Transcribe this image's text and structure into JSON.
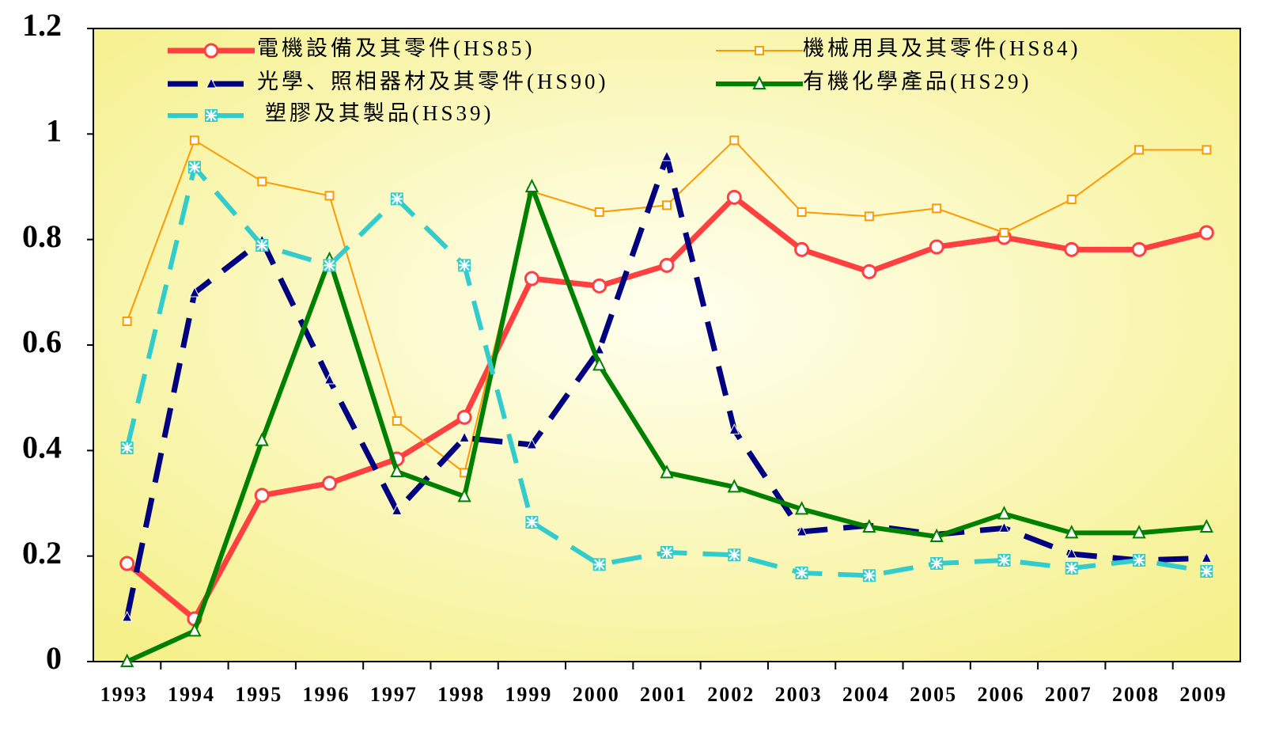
{
  "chart_data": {
    "type": "line",
    "categories": [
      "1993",
      "1994",
      "1995",
      "1996",
      "1997",
      "1998",
      "1999",
      "2000",
      "2001",
      "2002",
      "2003",
      "2004",
      "2005",
      "2006",
      "2007",
      "2008",
      "2009"
    ],
    "ylim": [
      0,
      1.2
    ],
    "yticks": [
      0,
      0.2,
      0.4,
      0.6,
      0.8,
      1,
      1.2
    ],
    "series": [
      {
        "name": "電機設備及其零件(HS85)",
        "color": "#ff4040",
        "marker": "circle",
        "dash": false,
        "width": 7,
        "values": [
          0.186,
          0.081,
          0.315,
          0.338,
          0.384,
          0.463,
          0.726,
          0.712,
          0.751,
          0.88,
          0.781,
          0.739,
          0.786,
          0.804,
          0.781,
          0.781,
          0.813
        ]
      },
      {
        "name": "機械用具及其零件(HS84)",
        "color": "#ff9900",
        "marker": "square",
        "dash": false,
        "width": 2,
        "values": [
          0.645,
          0.988,
          0.91,
          0.883,
          0.456,
          0.358,
          0.891,
          0.852,
          0.865,
          0.988,
          0.852,
          0.844,
          0.859,
          0.813,
          0.876,
          0.97,
          0.97
        ]
      },
      {
        "name": "光學、照相器材及其零件(HS90)",
        "color": "#000080",
        "marker": "triangle",
        "dash": true,
        "width": 7,
        "values": [
          0.084,
          0.699,
          0.798,
          0.534,
          0.286,
          0.424,
          0.411,
          0.591,
          0.957,
          0.439,
          0.246,
          0.258,
          0.241,
          0.253,
          0.204,
          0.192,
          0.196
        ]
      },
      {
        "name": "有機化學產品(HS29)",
        "color": "#008000",
        "marker": "triangle-open",
        "dash": false,
        "width": 6,
        "values": [
          0,
          0.058,
          0.419,
          0.762,
          0.36,
          0.313,
          0.9,
          0.562,
          0.358,
          0.331,
          0.289,
          0.255,
          0.237,
          0.28,
          0.244,
          0.244,
          0.255
        ]
      },
      {
        "name": "塑膠及其製品(HS39)",
        "color": "#33cccc",
        "marker": "asterisk",
        "dash": true,
        "width": 6,
        "values": [
          0.405,
          0.937,
          0.789,
          0.751,
          0.877,
          0.751,
          0.264,
          0.184,
          0.207,
          0.202,
          0.168,
          0.163,
          0.186,
          0.192,
          0.177,
          0.192,
          0.171
        ]
      }
    ]
  }
}
